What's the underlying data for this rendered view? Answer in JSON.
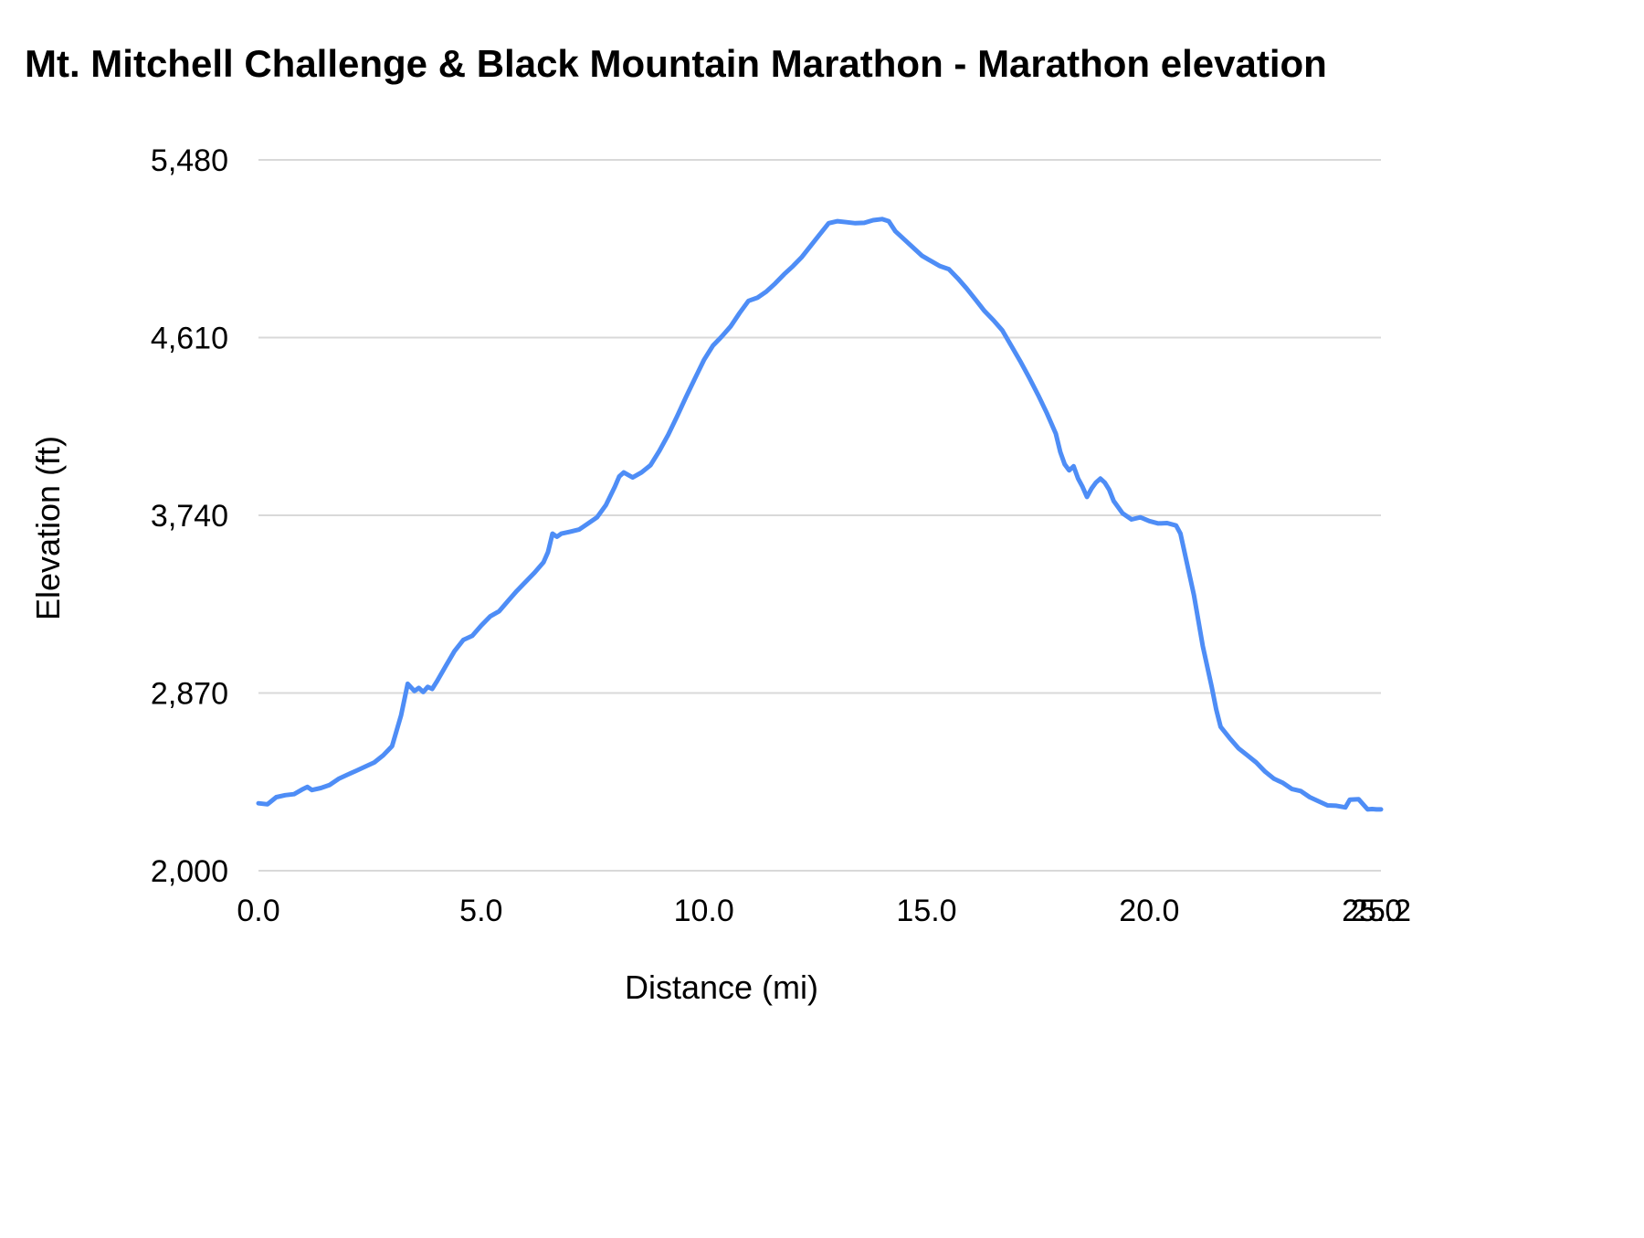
{
  "chart_data": {
    "type": "line",
    "title": "Mt. Mitchell Challenge & Black Mountain Marathon - Marathon elevation",
    "xlabel": "Distance (mi)",
    "ylabel": "Elevation (ft)",
    "xlim": [
      0,
      25.2
    ],
    "ylim": [
      2000,
      5480
    ],
    "grid": "horizontal",
    "legend": "none",
    "line_color": "#4e8df6",
    "gridline_color": "#d9d9d9",
    "text_color": "#000000",
    "xticks": [
      {
        "value": 0.0,
        "label": "0.0"
      },
      {
        "value": 5.0,
        "label": "5.0"
      },
      {
        "value": 10.0,
        "label": "10.0"
      },
      {
        "value": 15.0,
        "label": "15.0"
      },
      {
        "value": 20.0,
        "label": "20.0"
      },
      {
        "value": 25.0,
        "label": "25.0"
      },
      {
        "value": 25.2,
        "label": "25.2"
      }
    ],
    "yticks": [
      {
        "value": 2000,
        "label": "2,000"
      },
      {
        "value": 2870,
        "label": "2,870"
      },
      {
        "value": 3740,
        "label": "3,740"
      },
      {
        "value": 4610,
        "label": "4,610"
      },
      {
        "value": 5480,
        "label": "5,480"
      }
    ],
    "series": [
      {
        "name": "Marathon elevation",
        "x": [
          0.0,
          0.2,
          0.4,
          0.6,
          0.8,
          1.0,
          1.1,
          1.2,
          1.4,
          1.6,
          1.8,
          2.0,
          2.2,
          2.4,
          2.6,
          2.8,
          3.0,
          3.2,
          3.35,
          3.5,
          3.6,
          3.7,
          3.8,
          3.9,
          4.0,
          4.2,
          4.4,
          4.6,
          4.8,
          5.0,
          5.2,
          5.4,
          5.6,
          5.8,
          6.0,
          6.2,
          6.4,
          6.5,
          6.6,
          6.7,
          6.8,
          7.0,
          7.2,
          7.4,
          7.6,
          7.8,
          8.0,
          8.1,
          8.2,
          8.4,
          8.6,
          8.8,
          9.0,
          9.2,
          9.4,
          9.6,
          9.8,
          10.0,
          10.2,
          10.4,
          10.6,
          10.8,
          11.0,
          11.2,
          11.4,
          11.6,
          11.8,
          12.0,
          12.2,
          12.4,
          12.6,
          12.8,
          13.0,
          13.2,
          13.4,
          13.6,
          13.8,
          14.0,
          14.15,
          14.3,
          14.5,
          14.7,
          14.9,
          15.1,
          15.3,
          15.5,
          15.7,
          15.9,
          16.1,
          16.3,
          16.5,
          16.7,
          16.9,
          17.1,
          17.3,
          17.5,
          17.7,
          17.9,
          18.0,
          18.1,
          18.2,
          18.3,
          18.4,
          18.5,
          18.6,
          18.7,
          18.8,
          18.9,
          19.0,
          19.1,
          19.2,
          19.4,
          19.6,
          19.8,
          20.0,
          20.2,
          20.4,
          20.6,
          20.7,
          20.8,
          21.0,
          21.2,
          21.4,
          21.5,
          21.6,
          21.8,
          22.0,
          22.2,
          22.4,
          22.6,
          22.8,
          23.0,
          23.2,
          23.4,
          23.6,
          23.8,
          24.0,
          24.2,
          24.4,
          24.5,
          24.7,
          24.9,
          25.0,
          25.1,
          25.2
        ],
        "y": [
          2330,
          2325,
          2360,
          2370,
          2375,
          2400,
          2410,
          2395,
          2405,
          2420,
          2450,
          2470,
          2490,
          2510,
          2530,
          2565,
          2610,
          2760,
          2915,
          2880,
          2895,
          2875,
          2900,
          2890,
          2925,
          3000,
          3075,
          3130,
          3150,
          3200,
          3245,
          3270,
          3320,
          3370,
          3415,
          3460,
          3510,
          3560,
          3650,
          3635,
          3650,
          3660,
          3670,
          3700,
          3730,
          3790,
          3880,
          3930,
          3950,
          3925,
          3950,
          3985,
          4055,
          4135,
          4225,
          4320,
          4410,
          4500,
          4570,
          4615,
          4665,
          4730,
          4790,
          4805,
          4835,
          4875,
          4920,
          4960,
          5005,
          5060,
          5115,
          5170,
          5180,
          5175,
          5170,
          5172,
          5185,
          5190,
          5180,
          5130,
          5090,
          5050,
          5010,
          4985,
          4960,
          4945,
          4900,
          4850,
          4795,
          4740,
          4695,
          4645,
          4570,
          4495,
          4415,
          4330,
          4240,
          4140,
          4050,
          3990,
          3960,
          3980,
          3920,
          3880,
          3830,
          3870,
          3900,
          3920,
          3900,
          3865,
          3810,
          3750,
          3720,
          3730,
          3712,
          3700,
          3702,
          3690,
          3650,
          3550,
          3350,
          3100,
          2900,
          2790,
          2705,
          2650,
          2600,
          2565,
          2530,
          2485,
          2450,
          2430,
          2400,
          2390,
          2360,
          2340,
          2320,
          2318,
          2310,
          2348,
          2350,
          2300,
          2302,
          2300,
          2300
        ]
      }
    ]
  }
}
